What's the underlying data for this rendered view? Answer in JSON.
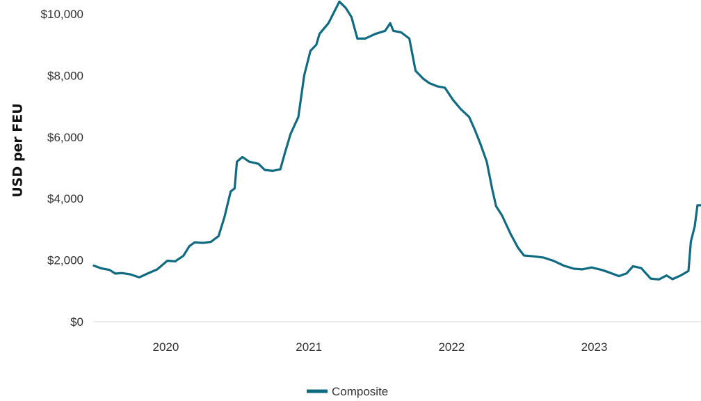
{
  "chart_data": {
    "type": "line",
    "title": "",
    "xlabel": "",
    "ylabel": "USD per FEU",
    "xlim": [
      "2019-07-01",
      "2023-10-01"
    ],
    "ylim": [
      0,
      10000
    ],
    "y_ticks": [
      {
        "value": 0,
        "label": "$0"
      },
      {
        "value": 2000,
        "label": "$2,000"
      },
      {
        "value": 4000,
        "label": "$4,000"
      },
      {
        "value": 6000,
        "label": "$6,000"
      },
      {
        "value": 8000,
        "label": "$8,000"
      },
      {
        "value": 10000,
        "label": "$10,000"
      }
    ],
    "x_ticks": [
      {
        "value": "2020-01-01",
        "label": "2020"
      },
      {
        "value": "2021-01-01",
        "label": "2021"
      },
      {
        "value": "2022-01-01",
        "label": "2022"
      },
      {
        "value": "2023-01-01",
        "label": "2023"
      }
    ],
    "grid": false,
    "legend": {
      "position": "bottom-center"
    },
    "series": [
      {
        "name": "Composite",
        "color": "#0f6b82",
        "points": [
          [
            "2019-07-01",
            1820
          ],
          [
            "2019-07-20",
            1730
          ],
          [
            "2019-08-10",
            1680
          ],
          [
            "2019-08-25",
            1560
          ],
          [
            "2019-09-10",
            1580
          ],
          [
            "2019-10-01",
            1540
          ],
          [
            "2019-10-25",
            1440
          ],
          [
            "2019-11-15",
            1560
          ],
          [
            "2019-12-10",
            1700
          ],
          [
            "2020-01-05",
            1980
          ],
          [
            "2020-01-25",
            1960
          ],
          [
            "2020-02-15",
            2140
          ],
          [
            "2020-03-01",
            2450
          ],
          [
            "2020-03-15",
            2580
          ],
          [
            "2020-04-05",
            2560
          ],
          [
            "2020-04-25",
            2590
          ],
          [
            "2020-05-15",
            2780
          ],
          [
            "2020-05-30",
            3400
          ],
          [
            "2020-06-15",
            4230
          ],
          [
            "2020-06-25",
            4330
          ],
          [
            "2020-07-01",
            5200
          ],
          [
            "2020-07-15",
            5350
          ],
          [
            "2020-08-01",
            5200
          ],
          [
            "2020-08-25",
            5130
          ],
          [
            "2020-09-10",
            4930
          ],
          [
            "2020-09-30",
            4900
          ],
          [
            "2020-10-20",
            4950
          ],
          [
            "2020-11-01",
            5500
          ],
          [
            "2020-11-15",
            6100
          ],
          [
            "2020-12-05",
            6650
          ],
          [
            "2020-12-20",
            8000
          ],
          [
            "2021-01-05",
            8800
          ],
          [
            "2021-01-20",
            9000
          ],
          [
            "2021-01-28",
            9350
          ],
          [
            "2021-02-20",
            9700
          ],
          [
            "2021-03-10",
            10150
          ],
          [
            "2021-03-20",
            10400
          ],
          [
            "2021-04-05",
            10200
          ],
          [
            "2021-04-20",
            9900
          ],
          [
            "2021-05-05",
            9200
          ],
          [
            "2021-05-25",
            9200
          ],
          [
            "2021-06-20",
            9350
          ],
          [
            "2021-07-15",
            9450
          ],
          [
            "2021-07-28",
            9700
          ],
          [
            "2021-08-05",
            9450
          ],
          [
            "2021-08-25",
            9400
          ],
          [
            "2021-09-15",
            9200
          ],
          [
            "2021-10-01",
            8150
          ],
          [
            "2021-10-20",
            7900
          ],
          [
            "2021-11-05",
            7750
          ],
          [
            "2021-11-25",
            7650
          ],
          [
            "2021-12-15",
            7600
          ],
          [
            "2022-01-05",
            7200
          ],
          [
            "2022-01-25",
            6900
          ],
          [
            "2022-02-15",
            6650
          ],
          [
            "2022-03-01",
            6250
          ],
          [
            "2022-03-15",
            5800
          ],
          [
            "2022-04-01",
            5200
          ],
          [
            "2022-04-15",
            4300
          ],
          [
            "2022-04-25",
            3750
          ],
          [
            "2022-05-10",
            3450
          ],
          [
            "2022-06-01",
            2850
          ],
          [
            "2022-06-20",
            2400
          ],
          [
            "2022-07-05",
            2150
          ],
          [
            "2022-08-01",
            2120
          ],
          [
            "2022-08-25",
            2080
          ],
          [
            "2022-09-20",
            1970
          ],
          [
            "2022-10-15",
            1820
          ],
          [
            "2022-11-10",
            1720
          ],
          [
            "2022-12-01",
            1700
          ],
          [
            "2022-12-25",
            1760
          ],
          [
            "2023-01-20",
            1680
          ],
          [
            "2023-02-10",
            1590
          ],
          [
            "2023-03-05",
            1480
          ],
          [
            "2023-03-25",
            1570
          ],
          [
            "2023-04-10",
            1800
          ],
          [
            "2023-05-01",
            1740
          ],
          [
            "2023-05-25",
            1400
          ],
          [
            "2023-06-15",
            1370
          ],
          [
            "2023-07-05",
            1500
          ],
          [
            "2023-07-20",
            1380
          ],
          [
            "2023-08-10",
            1500
          ],
          [
            "2023-08-30",
            1650
          ],
          [
            "2023-09-05",
            2600
          ],
          [
            "2023-09-15",
            3100
          ],
          [
            "2023-09-22",
            3780
          ],
          [
            "2023-10-01",
            3780
          ]
        ]
      }
    ]
  }
}
